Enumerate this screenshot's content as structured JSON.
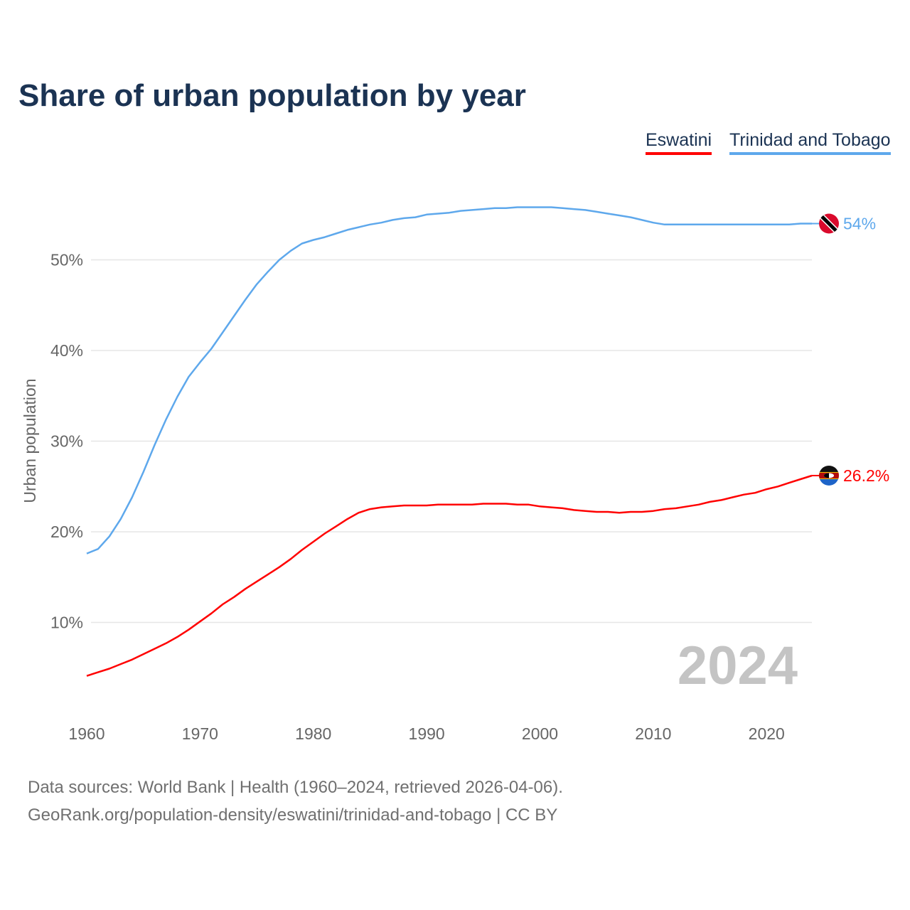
{
  "title": "Share of urban population by year",
  "legend": [
    {
      "label": "Eswatini",
      "color": "#ff0000"
    },
    {
      "label": "Trinidad and Tobago",
      "color": "#5ea8ec"
    }
  ],
  "year_watermark": "2024",
  "source_line1": "Data sources: World Bank | Health (1960–2024, retrieved 2026-04-06).",
  "source_line2": "GeoRank.org/population-density/eswatini/trinidad-and-tobago | CC BY",
  "chart_data": {
    "type": "line",
    "title": "Share of urban population by year",
    "xlabel": "",
    "ylabel": "Urban population",
    "xlim": [
      1960,
      2024
    ],
    "ylim": [
      0,
      58
    ],
    "x_ticks": [
      1960,
      1970,
      1980,
      1990,
      2000,
      2010,
      2020
    ],
    "y_ticks": [
      10,
      20,
      30,
      40,
      50
    ],
    "y_tick_labels": [
      "10%",
      "20%",
      "30%",
      "40%",
      "50%"
    ],
    "grid": true,
    "legend_position": "top-right",
    "x": [
      1960,
      1961,
      1962,
      1963,
      1964,
      1965,
      1966,
      1967,
      1968,
      1969,
      1970,
      1971,
      1972,
      1973,
      1974,
      1975,
      1976,
      1977,
      1978,
      1979,
      1980,
      1981,
      1982,
      1983,
      1984,
      1985,
      1986,
      1987,
      1988,
      1989,
      1990,
      1991,
      1992,
      1993,
      1994,
      1995,
      1996,
      1997,
      1998,
      1999,
      2000,
      2001,
      2002,
      2003,
      2004,
      2005,
      2006,
      2007,
      2008,
      2009,
      2010,
      2011,
      2012,
      2013,
      2014,
      2015,
      2016,
      2017,
      2018,
      2019,
      2020,
      2021,
      2022,
      2023,
      2024
    ],
    "series": [
      {
        "name": "Eswatini",
        "color": "#ff0000",
        "end_label": "26.2%",
        "values": [
          4.1,
          4.5,
          4.9,
          5.4,
          5.9,
          6.5,
          7.1,
          7.7,
          8.4,
          9.2,
          10.1,
          11.0,
          12.0,
          12.8,
          13.7,
          14.5,
          15.3,
          16.1,
          17.0,
          18.0,
          18.9,
          19.8,
          20.6,
          21.4,
          22.1,
          22.5,
          22.7,
          22.8,
          22.9,
          22.9,
          22.9,
          23.0,
          23.0,
          23.0,
          23.0,
          23.1,
          23.1,
          23.1,
          23.0,
          23.0,
          22.8,
          22.7,
          22.6,
          22.4,
          22.3,
          22.2,
          22.2,
          22.1,
          22.2,
          22.2,
          22.3,
          22.5,
          22.6,
          22.8,
          23.0,
          23.3,
          23.5,
          23.8,
          24.1,
          24.3,
          24.7,
          25.0,
          25.4,
          25.8,
          26.2
        ]
      },
      {
        "name": "Trinidad and Tobago",
        "color": "#5ea8ec",
        "end_label": "54%",
        "values": [
          17.6,
          18.1,
          19.5,
          21.4,
          23.8,
          26.6,
          29.6,
          32.4,
          34.9,
          37.1,
          38.7,
          40.2,
          42.0,
          43.8,
          45.6,
          47.3,
          48.7,
          50.0,
          51.0,
          51.8,
          52.2,
          52.5,
          52.9,
          53.3,
          53.6,
          53.9,
          54.1,
          54.4,
          54.6,
          54.7,
          55.0,
          55.1,
          55.2,
          55.4,
          55.5,
          55.6,
          55.7,
          55.7,
          55.8,
          55.8,
          55.8,
          55.8,
          55.7,
          55.6,
          55.5,
          55.3,
          55.1,
          54.9,
          54.7,
          54.4,
          54.1,
          53.9,
          53.9,
          53.9,
          53.9,
          53.9,
          53.9,
          53.9,
          53.9,
          53.9,
          53.9,
          53.9,
          53.9,
          54.0,
          54.0
        ]
      }
    ]
  }
}
